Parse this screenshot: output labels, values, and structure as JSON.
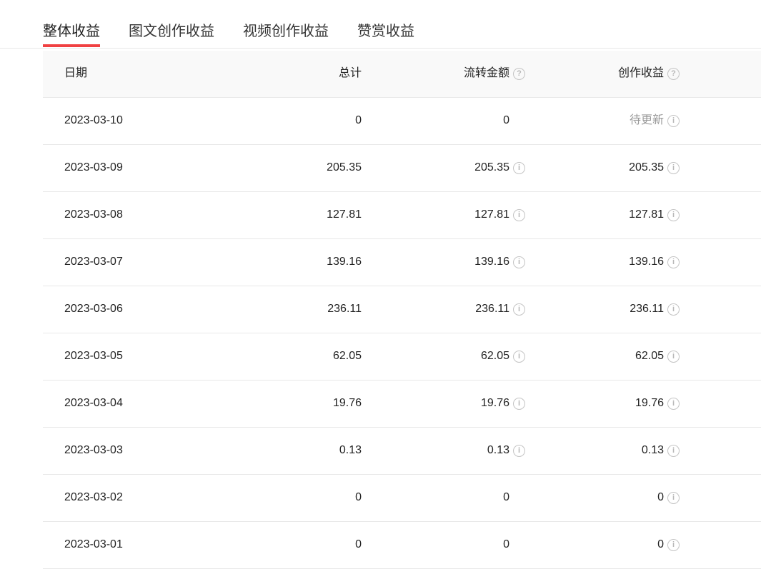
{
  "tabs": [
    {
      "label": "整体收益",
      "active": true
    },
    {
      "label": "图文创作收益"
    },
    {
      "label": "视频创作收益"
    },
    {
      "label": "赞赏收益"
    }
  ],
  "accent": "#f04142",
  "table": {
    "headers": {
      "date": "日期",
      "total": "总计",
      "flow": "流转金额",
      "creation": "创作收益"
    },
    "rows": [
      {
        "date": "2023-03-10",
        "total": "0",
        "flow": "0",
        "creation": "待更新",
        "flow_info": false,
        "pending": true
      },
      {
        "date": "2023-03-09",
        "total": "205.35",
        "flow": "205.35",
        "creation": "205.35",
        "flow_info": true
      },
      {
        "date": "2023-03-08",
        "total": "127.81",
        "flow": "127.81",
        "creation": "127.81",
        "flow_info": true
      },
      {
        "date": "2023-03-07",
        "total": "139.16",
        "flow": "139.16",
        "creation": "139.16",
        "flow_info": true
      },
      {
        "date": "2023-03-06",
        "total": "236.11",
        "flow": "236.11",
        "creation": "236.11",
        "flow_info": true
      },
      {
        "date": "2023-03-05",
        "total": "62.05",
        "flow": "62.05",
        "creation": "62.05",
        "flow_info": true
      },
      {
        "date": "2023-03-04",
        "total": "19.76",
        "flow": "19.76",
        "creation": "19.76",
        "flow_info": true
      },
      {
        "date": "2023-03-03",
        "total": "0.13",
        "flow": "0.13",
        "creation": "0.13",
        "flow_info": true
      },
      {
        "date": "2023-03-02",
        "total": "0",
        "flow": "0",
        "creation": "0",
        "flow_info": false
      },
      {
        "date": "2023-03-01",
        "total": "0",
        "flow": "0",
        "creation": "0",
        "flow_info": false
      }
    ]
  }
}
